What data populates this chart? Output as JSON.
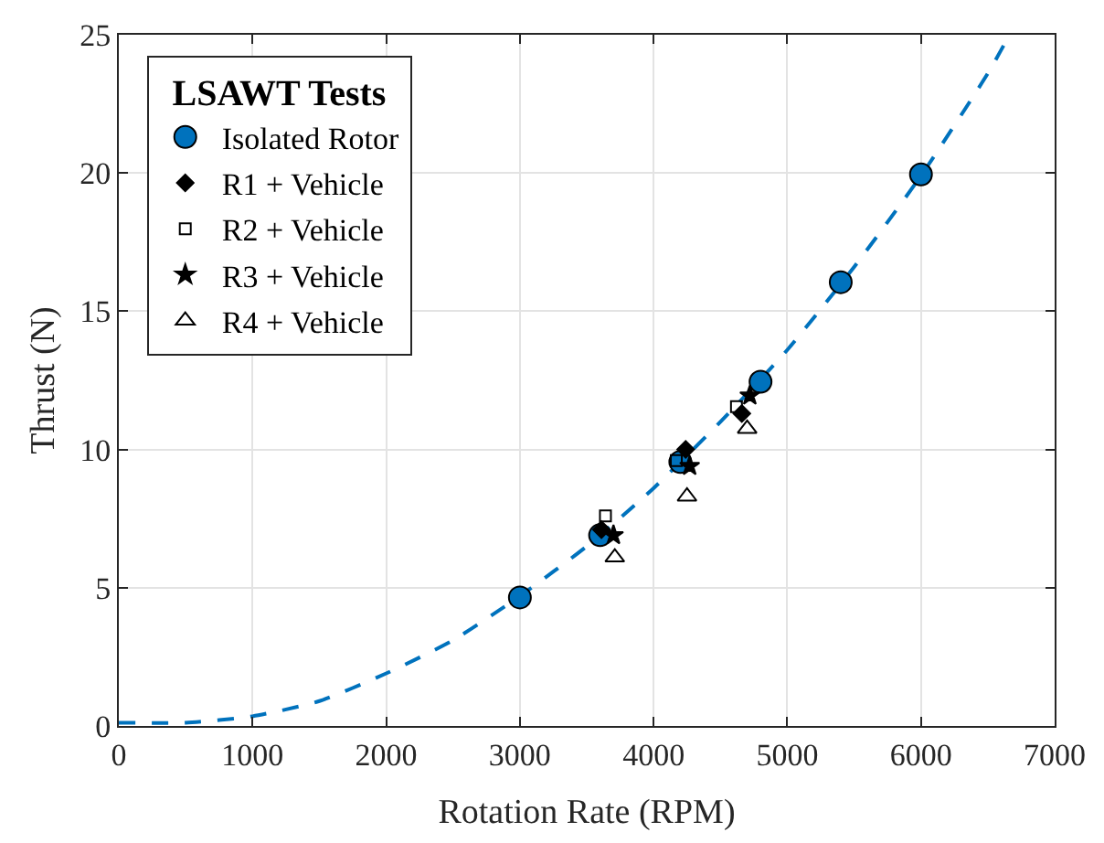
{
  "chart_data": {
    "type": "scatter",
    "xlabel": "Rotation Rate (RPM)",
    "ylabel": "Thrust (N)",
    "legend_title": "LSAWT Tests",
    "xlim": [
      0,
      7000
    ],
    "xticks": [
      0,
      1000,
      2000,
      3000,
      4000,
      5000,
      6000,
      7000
    ],
    "ylim": [
      0,
      25
    ],
    "yticks": [
      0,
      5,
      10,
      15,
      20,
      25
    ],
    "grid": true,
    "legend": "top left",
    "series": [
      {
        "type": "line",
        "line_style": "dashed",
        "marker": "none",
        "color": "#0072bd",
        "x": [
          0,
          500,
          1000,
          1500,
          2000,
          2500,
          3000,
          3500,
          4000,
          4500,
          5000,
          5500,
          6000,
          6500,
          6640
        ],
        "values": [
          0.12,
          0.12,
          0.35,
          0.9,
          1.9,
          3.1,
          4.7,
          6.5,
          8.6,
          11.0,
          13.6,
          16.6,
          19.9,
          23.6,
          24.8
        ]
      },
      {
        "name": "Isolated Rotor",
        "marker": "circle",
        "color": "#0072bd",
        "x": [
          3000,
          3600,
          4200,
          4800,
          5400,
          6000
        ],
        "values": [
          4.65,
          6.9,
          9.55,
          12.45,
          16.05,
          19.95
        ]
      },
      {
        "name": "R1 + Vehicle",
        "marker": "diamond",
        "color": "#000000",
        "x": [
          3610,
          4240,
          4660
        ],
        "values": [
          7.1,
          10.0,
          11.3
        ]
      },
      {
        "name": "R2 + Vehicle",
        "marker": "square",
        "color": "#000000",
        "x": [
          3640,
          4170,
          4620
        ],
        "values": [
          7.6,
          9.6,
          11.55
        ]
      },
      {
        "name": "R3 + Vehicle",
        "marker": "star",
        "color": "#000000",
        "x": [
          3700,
          4270,
          4720
        ],
        "values": [
          6.9,
          9.4,
          11.95
        ]
      },
      {
        "name": "R4 + Vehicle",
        "marker": "triangle",
        "color": "#000000",
        "x": [
          3710,
          4250,
          4700
        ],
        "values": [
          6.1,
          8.3,
          10.75
        ]
      }
    ]
  }
}
